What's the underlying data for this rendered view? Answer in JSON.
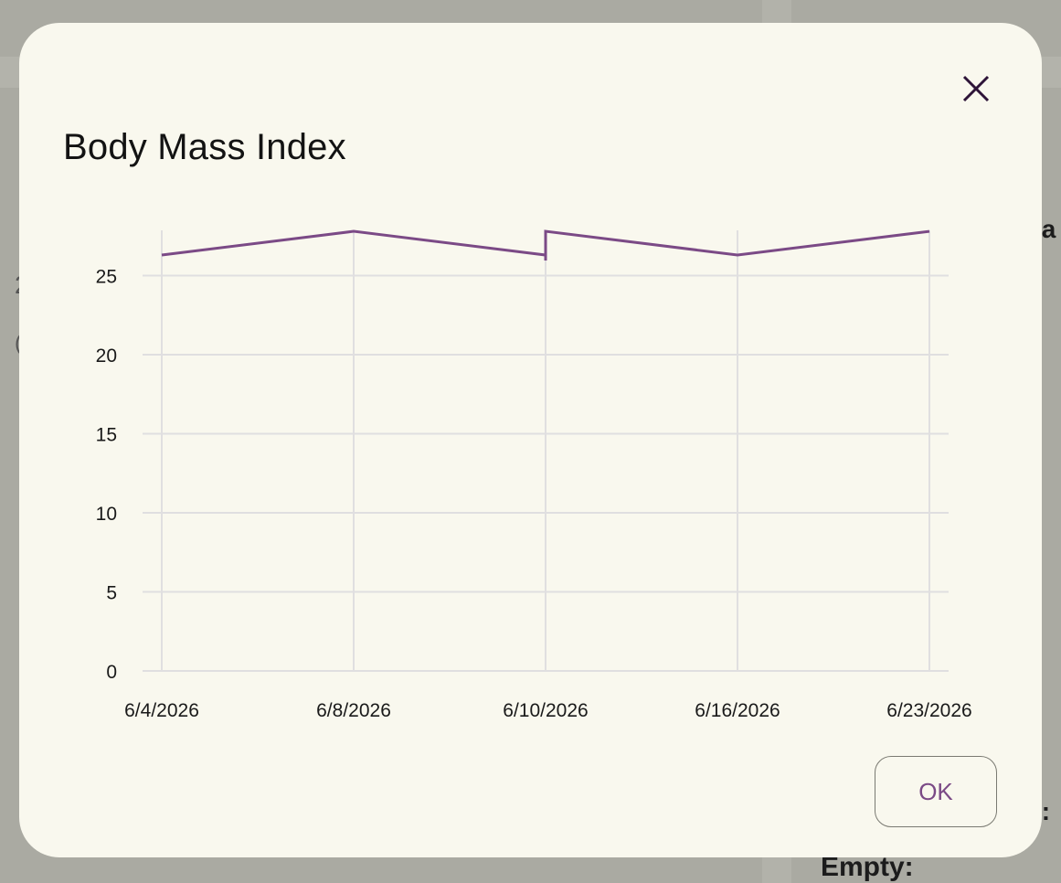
{
  "background": {
    "text_empty": "Empty:"
  },
  "dialog": {
    "title": "Body Mass Index",
    "ok_label": "OK",
    "close_icon": "close-icon"
  },
  "colors": {
    "line": "#7b4a86",
    "grid": "#e0dfe0",
    "accent": "#7b4a86",
    "dialog_bg": "#f9f8ee",
    "scrim": "#aaaaa2"
  },
  "chart_data": {
    "type": "line",
    "title": "",
    "xlabel": "",
    "ylabel": "",
    "categories": [
      "6/4/2026",
      "6/8/2026",
      "6/10/2026",
      "6/16/2026",
      "6/23/2026"
    ],
    "x": [
      0,
      1,
      2,
      2,
      3,
      4
    ],
    "y": [
      26.3,
      27.8,
      26.3,
      27.8,
      26.3,
      27.8
    ],
    "ylim": [
      0,
      27.8
    ],
    "yticks": [
      0,
      5,
      10,
      15,
      20,
      25
    ],
    "grid": true,
    "legend": "none"
  }
}
